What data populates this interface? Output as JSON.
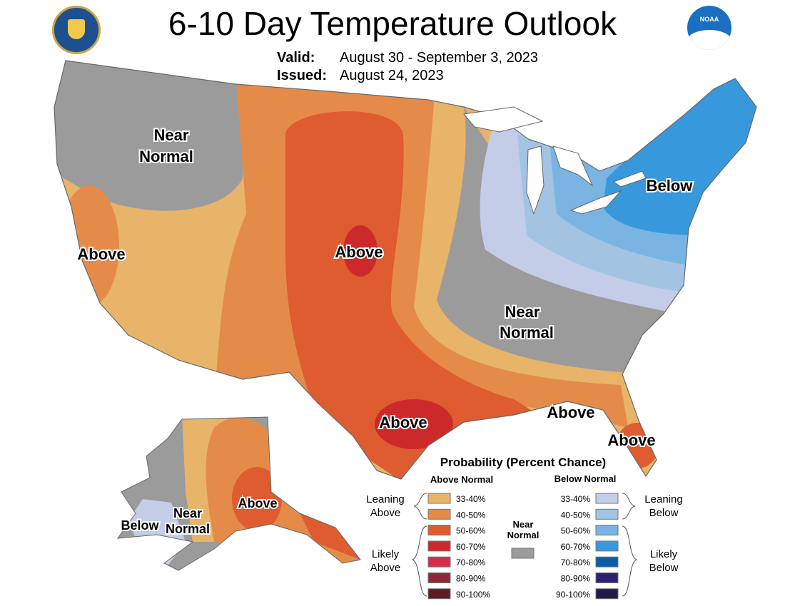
{
  "header": {
    "title": "6-10 Day Temperature Outlook",
    "valid_label": "Valid:",
    "valid_value": "August 30 - September 3, 2023",
    "issued_label": "Issued:",
    "issued_value": "August 24, 2023",
    "left_logo": "department-of-commerce-seal",
    "right_logo": "noaa-logo",
    "noaa_text": "NOAA"
  },
  "map_labels": {
    "nw_near_1": "Near",
    "nw_near_2": "Normal",
    "ca_above": "Above",
    "central_above": "Above",
    "tx_above": "Above",
    "gulf_above": "Above",
    "fl_above": "Above",
    "ne_below": "Below",
    "east_near_1": "Near",
    "east_near_2": "Normal",
    "ak_above": "Above",
    "ak_near_1": "Near",
    "ak_near_2": "Normal",
    "ak_below": "Below"
  },
  "legend": {
    "title": "Probability (Percent Chance)",
    "above_header": "Above Normal",
    "below_header": "Below Normal",
    "leaning_above": [
      "Leaning",
      "Above"
    ],
    "likely_above": [
      "Likely",
      "Above"
    ],
    "leaning_below": [
      "Leaning",
      "Below"
    ],
    "likely_below": [
      "Likely",
      "Below"
    ],
    "near_normal": [
      "Near",
      "Normal"
    ],
    "near_normal_color": "#9b9b9b",
    "above": [
      {
        "label": "33-40%",
        "color": "#e8b46a"
      },
      {
        "label": "40-50%",
        "color": "#e58b4a"
      },
      {
        "label": "50-60%",
        "color": "#df5b30"
      },
      {
        "label": "60-70%",
        "color": "#cc2a2a"
      },
      {
        "label": "70-80%",
        "color": "#d42f4a"
      },
      {
        "label": "80-90%",
        "color": "#8d2a35"
      },
      {
        "label": "90-100%",
        "color": "#5e1c22"
      }
    ],
    "below": [
      {
        "label": "33-40%",
        "color": "#c4cde8"
      },
      {
        "label": "40-50%",
        "color": "#a3c3e3"
      },
      {
        "label": "50-60%",
        "color": "#79b4e3"
      },
      {
        "label": "60-70%",
        "color": "#3799dc"
      },
      {
        "label": "70-80%",
        "color": "#0a5ca6"
      },
      {
        "label": "80-90%",
        "color": "#2e2174"
      },
      {
        "label": "90-100%",
        "color": "#1e1a4a"
      }
    ]
  }
}
